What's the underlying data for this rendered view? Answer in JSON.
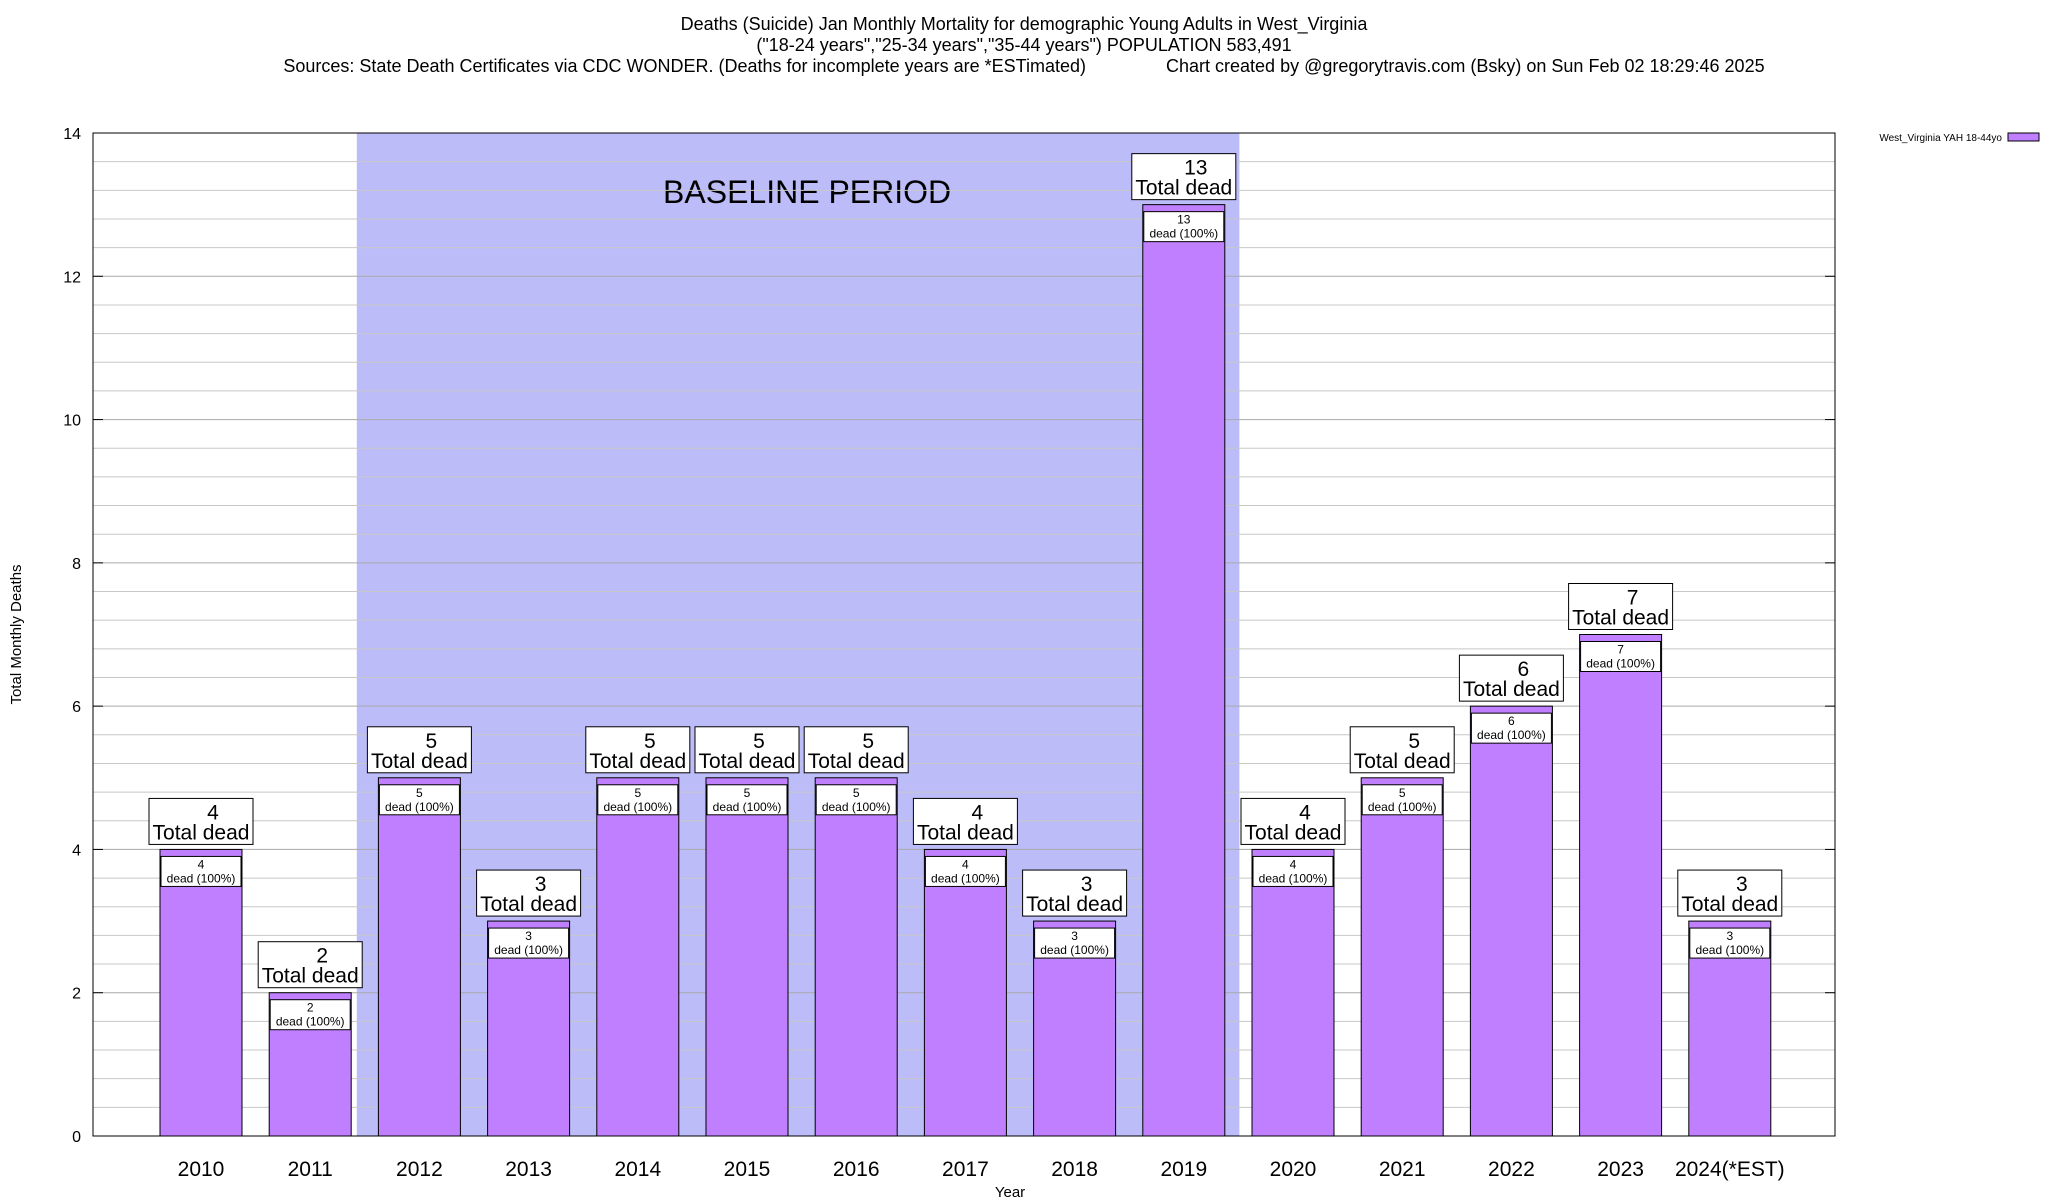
{
  "titles": {
    "line1": "Deaths (Suicide) Jan Monthly Mortality for demographic Young Adults in West_Virginia",
    "line2": "(\"18-24 years\",\"25-34 years\",\"35-44 years\") POPULATION 583,491",
    "line3": "Sources: State Death Certificates via CDC WONDER. (Deaths for incomplete years are *ESTimated)                Chart created by @gregorytravis.com (Bsky) on Sun Feb 02 18:29:46 2025"
  },
  "colors": {
    "bar_fill": "#bf7fff",
    "baseline_fill": "#bcbcf9",
    "grid": "#c8c8c8"
  },
  "chart_data": {
    "type": "bar",
    "xlabel": "Year",
    "ylabel": "Total Monthly Deaths",
    "ylim": [
      0,
      14
    ],
    "yticks": [
      0,
      2,
      4,
      6,
      8,
      10,
      12,
      14
    ],
    "grid": true,
    "legend": {
      "position": "top-right",
      "entries": [
        "West_Virginia YAH 18-44yo"
      ]
    },
    "categories": [
      "2010",
      "2011",
      "2012",
      "2013",
      "2014",
      "2015",
      "2016",
      "2017",
      "2018",
      "2019",
      "2020",
      "2021",
      "2022",
      "2023",
      "2024(*EST)"
    ],
    "series": [
      {
        "name": "West_Virginia YAH 18-44yo",
        "values": [
          4,
          2,
          5,
          3,
          5,
          5,
          5,
          4,
          3,
          13,
          4,
          5,
          6,
          7,
          3
        ]
      }
    ],
    "bar_labels": {
      "total_suffix": "Total dead",
      "inner_suffix": "dead (100%)"
    },
    "baseline_period": {
      "label": "BASELINE PERIOD",
      "start": "2012",
      "end": "2019"
    }
  }
}
